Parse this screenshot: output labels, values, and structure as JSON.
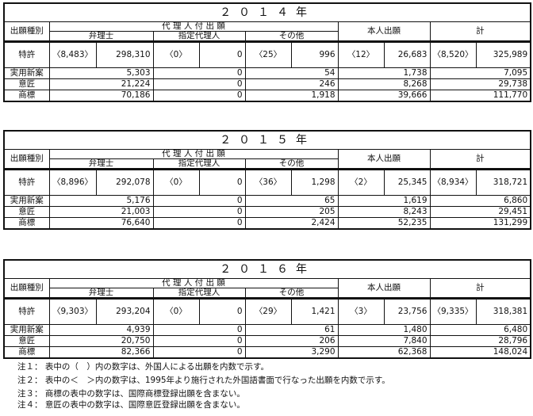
{
  "headers": {
    "category": "出願種別",
    "agent_group": "代 理 人 付 出 願",
    "patent_attorney": "弁理士",
    "designated_agent": "指定代理人",
    "other": "その他",
    "self": "本人出願",
    "total": "計"
  },
  "tables": [
    {
      "year": "２０１４年",
      "patent": {
        "label": "特許",
        "values": [
          "〈8,483〉",
          "298,310",
          "〈0〉",
          "0",
          "〈25〉",
          "996",
          "〈12〉",
          "26,683",
          "〈8,520〉",
          "325,989"
        ]
      },
      "rows": [
        {
          "label": "実用新案",
          "values": [
            "5,303",
            "0",
            "54",
            "1,738",
            "7,095"
          ]
        },
        {
          "label": "意匠",
          "values": [
            "21,224",
            "0",
            "246",
            "8,268",
            "29,738"
          ]
        },
        {
          "label": "商標",
          "values": [
            "70,186",
            "0",
            "1,918",
            "39,666",
            "111,770"
          ]
        }
      ]
    },
    {
      "year": "２０１５年",
      "patent": {
        "label": "特許",
        "values": [
          "〈8,896〉",
          "292,078",
          "〈0〉",
          "0",
          "〈36〉",
          "1,298",
          "〈2〉",
          "25,345",
          "〈8,934〉",
          "318,721"
        ]
      },
      "rows": [
        {
          "label": "実用新案",
          "values": [
            "5,176",
            "0",
            "65",
            "1,619",
            "6,860"
          ]
        },
        {
          "label": "意匠",
          "values": [
            "21,003",
            "0",
            "205",
            "8,243",
            "29,451"
          ]
        },
        {
          "label": "商標",
          "values": [
            "76,640",
            "0",
            "2,424",
            "52,235",
            "131,299"
          ]
        }
      ]
    },
    {
      "year": "２０１６年",
      "patent": {
        "label": "特許",
        "values": [
          "〈9,303〉",
          "293,204",
          "〈0〉",
          "0",
          "〈29〉",
          "1,421",
          "〈3〉",
          "23,756",
          "〈9,335〉",
          "318,381"
        ]
      },
      "rows": [
        {
          "label": "実用新案",
          "values": [
            "4,939",
            "0",
            "61",
            "1,480",
            "6,480"
          ]
        },
        {
          "label": "意匠",
          "values": [
            "20,750",
            "0",
            "206",
            "7,840",
            "28,796"
          ]
        },
        {
          "label": "商標",
          "values": [
            "82,366",
            "0",
            "3,290",
            "62,368",
            "148,024"
          ]
        }
      ]
    }
  ],
  "notes": [
    "注１： 表中の（　）内の数字は、外国人による出願を内数で示す。",
    "注２： 表中の＜　＞内の数字は、1995年より施行された外国語書面で行なった出願を内数で示す。",
    "注３： 商標の表中の数字は、国際商標登録出願を含まない。",
    "注４： 意匠の表中の数字は、国際意匠登録出願を含まない。"
  ]
}
